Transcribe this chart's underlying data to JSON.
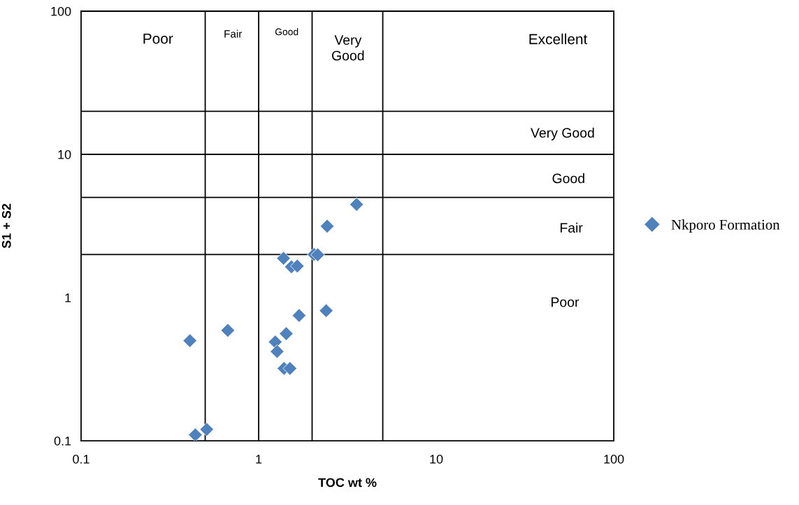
{
  "chart_data": {
    "type": "scatter",
    "xlabel": "TOC wt %",
    "ylabel": "S1 + S2",
    "log": "xy",
    "xlim": [
      0.1,
      100
    ],
    "ylim": [
      0.1,
      100
    ],
    "xticks": [
      0.1,
      1,
      10,
      100
    ],
    "yticks": [
      0.1,
      1,
      10,
      100
    ],
    "grid": false,
    "legend": "right",
    "marker": "diamond",
    "series": [
      {
        "name": "Nkporo Formation",
        "color": "#4f81bd",
        "x": [
          3.56,
          2.43,
          1.38,
          1.53,
          1.65,
          2.05,
          2.15,
          1.69,
          2.4,
          0.67,
          0.41,
          1.43,
          1.24,
          1.27,
          1.39,
          1.5,
          0.51,
          0.44
        ],
        "values": [
          4.47,
          3.15,
          1.88,
          1.64,
          1.66,
          2.0,
          1.99,
          0.75,
          0.81,
          0.59,
          0.5,
          0.56,
          0.49,
          0.42,
          0.32,
          0.32,
          0.12,
          0.11
        ]
      }
    ],
    "ref_lines": [
      {
        "axis": "x",
        "value": 0.5,
        "color": "#000000"
      },
      {
        "axis": "x",
        "value": 1,
        "color": "#000000"
      },
      {
        "axis": "x",
        "value": 2,
        "color": "#000000"
      },
      {
        "axis": "x",
        "value": 5,
        "color": "#000000"
      },
      {
        "axis": "y",
        "value": 2,
        "color": "#000000"
      },
      {
        "axis": "y",
        "value": 5,
        "color": "#000000"
      },
      {
        "axis": "y",
        "value": 10,
        "color": "#000000"
      },
      {
        "axis": "y",
        "value": 20,
        "color": "#000000"
      }
    ],
    "annotations": [
      "Poor",
      "Fair",
      "Good",
      "Very\nGood",
      "Excellent",
      "Very Good",
      "Good",
      "Fair",
      "Poor"
    ]
  }
}
